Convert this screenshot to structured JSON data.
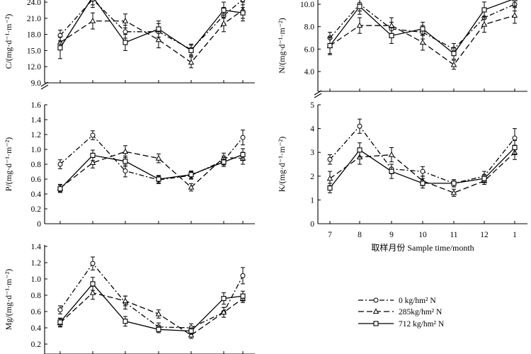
{
  "x_axis": {
    "label": "取样月份 Sample time/month",
    "categories": [
      "7",
      "8",
      "9",
      "10",
      "11",
      "12",
      "1"
    ]
  },
  "legend": {
    "placement": "bottom-right",
    "entries": [
      {
        "label": "0 kg/hm² N",
        "style": "dash-dot",
        "marker": "circle"
      },
      {
        "label": "285kg/hm²  N",
        "style": "dashed",
        "marker": "triangle"
      },
      {
        "label": "712 kg/hm² N",
        "style": "solid",
        "marker": "square"
      }
    ]
  },
  "chart_data": [
    {
      "type": "line",
      "panel": "C",
      "ylabel": "C/(mg·d⁻¹·m⁻²)",
      "yticks": [
        "9.0",
        "12.0",
        "15.0",
        "18.0",
        "21.0",
        "24.0"
      ],
      "ylim": [
        9,
        24
      ],
      "axis_break": true,
      "categories": [
        "7",
        "8",
        "9",
        "10",
        "11",
        "12",
        "1"
      ],
      "series": [
        {
          "name": "0 kg/hm² N",
          "values": [
            17.8,
            24.5,
            18.5,
            18.5,
            15.2,
            21.5,
            24.5
          ],
          "errors": [
            1.0,
            1.5,
            1.2,
            1.5,
            1.0,
            1.5,
            1.5
          ]
        },
        {
          "name": "285kg/hm²  N",
          "values": [
            16.5,
            20.5,
            20.5,
            17.0,
            12.8,
            20.0,
            22.5
          ],
          "errors": [
            1.0,
            1.5,
            1.3,
            1.5,
            1.0,
            1.5,
            1.5
          ]
        },
        {
          "name": "712 kg/hm² N",
          "values": [
            15.5,
            25.0,
            16.5,
            19.0,
            15.0,
            22.5,
            22.0
          ],
          "errors": [
            2.0,
            1.5,
            1.5,
            1.5,
            1.0,
            1.5,
            1.5
          ]
        }
      ]
    },
    {
      "type": "line",
      "panel": "N",
      "ylabel": "N/(mg·d⁻¹·m⁻²)",
      "yticks": [
        "4.0",
        "6.0",
        "8.0",
        "10.0"
      ],
      "ylim": [
        3,
        10.5
      ],
      "axis_break": true,
      "categories": [
        "7",
        "8",
        "9",
        "10",
        "11",
        "12",
        "1"
      ],
      "series": [
        {
          "name": "0 kg/hm² N",
          "values": [
            7.0,
            10.0,
            7.8,
            7.5,
            6.0,
            8.8,
            10.0
          ],
          "errors": [
            0.5,
            0.6,
            0.6,
            0.6,
            0.5,
            0.6,
            0.6
          ]
        },
        {
          "name": "285kg/hm²  N",
          "values": [
            6.3,
            8.1,
            8.1,
            6.6,
            4.6,
            8.2,
            9.0
          ],
          "errors": [
            0.7,
            0.7,
            0.7,
            0.7,
            0.4,
            0.7,
            0.7
          ]
        },
        {
          "name": "712 kg/hm² N",
          "values": [
            6.3,
            9.8,
            7.2,
            7.8,
            5.6,
            9.5,
            10.5
          ],
          "errors": [
            0.8,
            0.7,
            0.7,
            0.6,
            0.5,
            0.7,
            0.7
          ]
        }
      ]
    },
    {
      "type": "line",
      "panel": "P",
      "ylabel": "P/(mg·d⁻¹·m⁻²)",
      "yticks": [
        "0",
        "0.2",
        "0.4",
        "0.6",
        "0.8",
        "1.0",
        "1.2",
        "1.4",
        "1.6"
      ],
      "ylim": [
        0,
        1.6
      ],
      "categories": [
        "7",
        "8",
        "9",
        "10",
        "11",
        "12",
        "1"
      ],
      "series": [
        {
          "name": "0 kg/hm² N",
          "values": [
            0.8,
            1.19,
            0.71,
            0.59,
            0.65,
            0.85,
            1.16
          ],
          "errors": [
            0.06,
            0.06,
            0.08,
            0.05,
            0.05,
            0.06,
            0.1
          ]
        },
        {
          "name": "285kg/hm²  N",
          "values": [
            0.48,
            0.82,
            0.97,
            0.88,
            0.49,
            0.89,
            0.88
          ],
          "errors": [
            0.05,
            0.07,
            0.08,
            0.06,
            0.05,
            0.06,
            0.08
          ]
        },
        {
          "name": "712 kg/hm² N",
          "values": [
            0.47,
            0.92,
            0.84,
            0.6,
            0.66,
            0.83,
            0.93
          ],
          "errors": [
            0.05,
            0.07,
            0.07,
            0.05,
            0.05,
            0.06,
            0.08
          ]
        }
      ]
    },
    {
      "type": "line",
      "panel": "K",
      "ylabel": "K/(mg·d⁻¹·m⁻²)",
      "yticks": [
        "0",
        "1",
        "2",
        "3",
        "4",
        "5"
      ],
      "ylim": [
        0,
        5
      ],
      "categories": [
        "7",
        "8",
        "9",
        "10",
        "11",
        "12",
        "1"
      ],
      "series": [
        {
          "name": "0 kg/hm² N",
          "values": [
            2.7,
            4.1,
            2.3,
            2.2,
            1.7,
            2.0,
            3.6
          ],
          "errors": [
            0.2,
            0.3,
            0.2,
            0.2,
            0.15,
            0.2,
            0.4
          ]
        },
        {
          "name": "285kg/hm²  N",
          "values": [
            1.9,
            2.8,
            2.9,
            1.8,
            1.3,
            1.8,
            3.0
          ],
          "errors": [
            0.3,
            0.3,
            0.3,
            0.2,
            0.15,
            0.15,
            0.3
          ]
        },
        {
          "name": "712 kg/hm² N",
          "values": [
            1.5,
            3.1,
            2.2,
            1.7,
            1.7,
            1.9,
            3.2
          ],
          "errors": [
            0.2,
            0.3,
            0.3,
            0.2,
            0.15,
            0.15,
            0.3
          ]
        }
      ]
    },
    {
      "type": "line",
      "panel": "Mg",
      "ylabel": "Mg/(mg·d⁻¹·m⁻²)",
      "yticks": [
        "0.2",
        "0.4",
        "0.6",
        "0.8",
        "1.0",
        "1.2",
        "1.4"
      ],
      "ylim": [
        0.1,
        1.45
      ],
      "categories": [
        "7",
        "8",
        "9",
        "10",
        "11",
        "12",
        "1"
      ],
      "series": [
        {
          "name": "0 kg/hm² N",
          "values": [
            0.62,
            1.19,
            0.71,
            0.41,
            0.4,
            0.59,
            1.04
          ],
          "errors": [
            0.05,
            0.08,
            0.08,
            0.05,
            0.05,
            0.06,
            0.1
          ]
        },
        {
          "name": "285kg/hm²  N",
          "values": [
            0.46,
            0.83,
            0.73,
            0.57,
            0.31,
            0.59,
            0.76
          ],
          "errors": [
            0.05,
            0.08,
            0.06,
            0.05,
            0.04,
            0.06,
            0.05
          ]
        },
        {
          "name": "712 kg/hm² N",
          "values": [
            0.47,
            0.94,
            0.48,
            0.38,
            0.36,
            0.76,
            0.79
          ],
          "errors": [
            0.05,
            0.08,
            0.06,
            0.04,
            0.04,
            0.07,
            0.06
          ]
        }
      ]
    }
  ]
}
